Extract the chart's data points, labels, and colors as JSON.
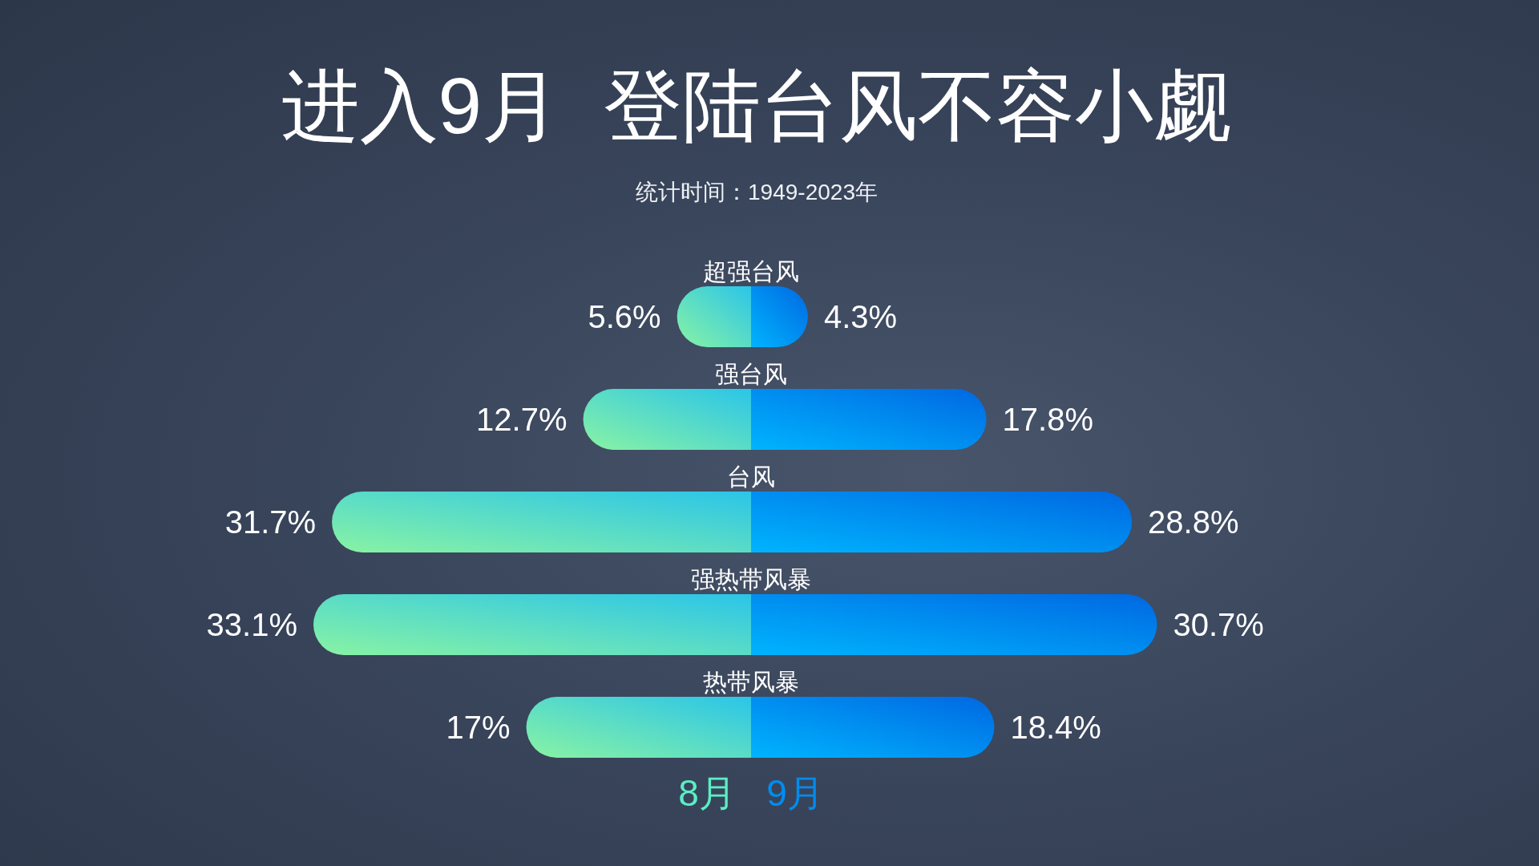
{
  "chart_data": [
    {
      "type": "bar",
      "orientation": "horizontal",
      "title": "进入9月  登陆台风不容小觑",
      "subtitle": "统计时间：1949-2023年",
      "categories": [
        "超强台风",
        "强台风",
        "台风",
        "强热带风暴",
        "热带风暴"
      ],
      "series": [
        {
          "name": "8月",
          "color": "#5aeec4",
          "values": [
            5.6,
            12.7,
            31.7,
            33.1,
            17
          ],
          "value_labels": [
            "5.6%",
            "12.7%",
            "31.7%",
            "33.1%",
            "17%"
          ]
        }
      ],
      "legend": "bottom"
    },
    {
      "type": "bar",
      "orientation": "horizontal",
      "categories": [
        null,
        null,
        null,
        null,
        null
      ],
      "series": [
        {
          "name": "9月",
          "color": "#008cf0",
          "values": [
            4.3,
            17.8,
            28.8,
            30.7,
            18.4
          ],
          "value_labels": [
            "4.3%",
            "17.8%",
            "28.8%",
            "30.7%",
            "18.4%"
          ]
        }
      ],
      "legend": "bottom"
    }
  ]
}
